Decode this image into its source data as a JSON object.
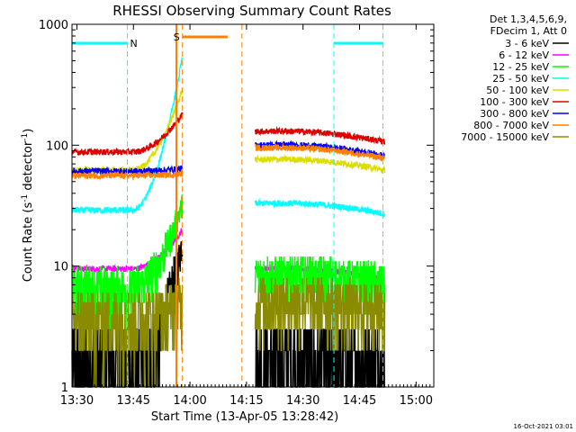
{
  "chart_data": {
    "type": "line",
    "title": "RHESSI Observing Summary Count Rates",
    "xlabel": "Start Time (13-Apr-05 13:28:42)",
    "ylabel_main": "Count Rate (s",
    "ylabel_sup1": "-1",
    "ylabel_mid": " detector",
    "ylabel_sup2": "-1",
    "ylabel_end": ")",
    "ylog": true,
    "ylim": [
      1,
      1000
    ],
    "xlim_minutes": [
      0,
      96
    ],
    "x_ticks": [
      {
        "label": "13:30",
        "minute": 1.3
      },
      {
        "label": "13:45",
        "minute": 16.3
      },
      {
        "label": "14:00",
        "minute": 31.3
      },
      {
        "label": "14:15",
        "minute": 46.3
      },
      {
        "label": "14:30",
        "minute": 61.3
      },
      {
        "label": "14:45",
        "minute": 76.3
      },
      {
        "label": "15:00",
        "minute": 91.3
      }
    ],
    "y_ticks": [
      {
        "label": "1",
        "value": 1
      },
      {
        "label": "10",
        "value": 10
      },
      {
        "label": "100",
        "value": 100
      },
      {
        "label": "1000",
        "value": 1000
      }
    ],
    "legend_header": [
      "Det 1,3,4,5,6,9,",
      "FDecim 1, Att 0"
    ],
    "legend_position": "right",
    "series": [
      {
        "name": "3 - 6 keV",
        "color": "#000000",
        "pre": 1.5,
        "post": 1.7,
        "peak": 16
      },
      {
        "name": "6 - 12 keV",
        "color": "#ff00ff",
        "pre": 9.5,
        "post": 9.5,
        "peak": 20
      },
      {
        "name": "12 - 25 keV",
        "color": "#00ff00",
        "pre": 6.5,
        "post": 8.5,
        "peak": 33
      },
      {
        "name": "25 - 50 keV",
        "color": "#00ffff",
        "pre": 29,
        "post": 33,
        "peak": 540
      },
      {
        "name": "50 - 100 keV",
        "color": "#dddd00",
        "pre": 62,
        "post": 76,
        "peak": 290
      },
      {
        "name": "100 - 300 keV",
        "color": "#dd0000",
        "pre": 88,
        "post": 130,
        "peak": 180
      },
      {
        "name": "300 - 800 keV",
        "color": "#0000ff",
        "pre": 61,
        "post": 100,
        "peak": 64
      },
      {
        "name": "800 - 7000 keV",
        "color": "#ff8000",
        "pre": 56,
        "post": 95,
        "peak": 58
      },
      {
        "name": "7000 - 15000 keV",
        "color": "#8b8b00",
        "pre": 3.7,
        "post": 5.2,
        "peak": 5
      }
    ],
    "annotations": {
      "night_bars": [
        {
          "label": "N",
          "start_min": 0,
          "end_min": 14.7
        },
        {
          "label": "",
          "start_min": 69.5,
          "end_min": 82.5
        }
      ],
      "saa_bar": {
        "label": "S",
        "start_min": 29.3,
        "end_min": 41.3
      },
      "night_lines_min": [
        0,
        14.7,
        69.5,
        82.5
      ],
      "saa_lines_min": [
        27.7,
        29.3,
        45.1
      ],
      "colors": {
        "night": "#00ffff",
        "saa": "#ff8000"
      }
    }
  },
  "footer_date": "16-Oct-2021 03:01"
}
